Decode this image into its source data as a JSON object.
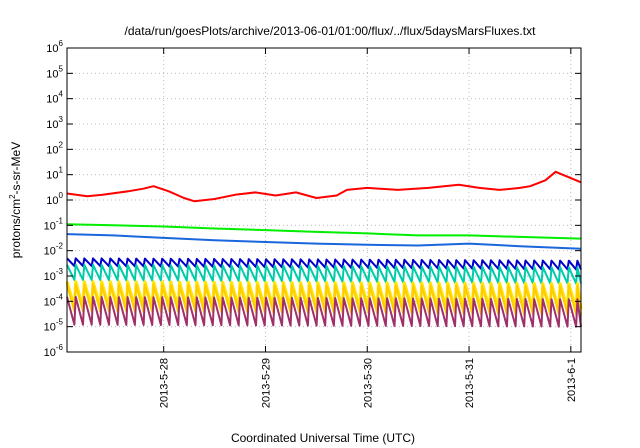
{
  "chart_data": {
    "type": "line",
    "title": "/data/run/goesPlots/archive/2013-06-01/01:00/flux/../flux/5daysMarsFluxes.txt",
    "xlabel": "Coordinated Universal Time (UTC)",
    "ylabel_base": "protons/cm",
    "ylabel_sup": "2",
    "ylabel_rest": "-s-sr-MeV",
    "yscale": "log",
    "ylim_exp": [
      -6,
      6
    ],
    "xlim": [
      -0.95,
      4.1
    ],
    "grid": true,
    "x_ticks": [
      {
        "x": 0,
        "label": "2013-5-28"
      },
      {
        "x": 1,
        "label": "2013-5-29"
      },
      {
        "x": 2,
        "label": "2013-5-30"
      },
      {
        "x": 3,
        "label": "2013-5-31"
      },
      {
        "x": 4,
        "label": "2013-6-1"
      }
    ],
    "y_ticks_exp": [
      -6,
      -5,
      -4,
      -3,
      -2,
      -1,
      0,
      1,
      2,
      3,
      4,
      5,
      6
    ],
    "series": [
      {
        "color": "#ff0000",
        "width": 2,
        "sawtooth": false,
        "x": [
          -0.95,
          -0.75,
          -0.6,
          -0.35,
          -0.2,
          -0.1,
          0.05,
          0.2,
          0.3,
          0.5,
          0.7,
          0.9,
          1.1,
          1.3,
          1.5,
          1.7,
          1.8,
          2.0,
          2.3,
          2.6,
          2.9,
          3.1,
          3.3,
          3.5,
          3.6,
          3.75,
          3.85,
          4.1
        ],
        "y": [
          1.8,
          1.4,
          1.6,
          2.2,
          2.8,
          3.5,
          2.2,
          1.2,
          0.9,
          1.1,
          1.6,
          2.0,
          1.5,
          2.0,
          1.2,
          1.5,
          2.5,
          3.0,
          2.5,
          3.0,
          4.0,
          3.0,
          2.5,
          3.0,
          3.5,
          6.0,
          13,
          5.0
        ]
      },
      {
        "color": "#00ee00",
        "width": 2,
        "sawtooth": false,
        "x": [
          -0.95,
          -0.5,
          0.0,
          0.5,
          1.0,
          1.5,
          2.0,
          2.5,
          3.0,
          3.5,
          4.1
        ],
        "y": [
          0.11,
          0.1,
          0.09,
          0.075,
          0.065,
          0.055,
          0.048,
          0.04,
          0.04,
          0.035,
          0.03
        ]
      },
      {
        "color": "#1a66dd",
        "width": 2,
        "sawtooth": false,
        "x": [
          -0.95,
          -0.5,
          0.0,
          0.5,
          1.0,
          1.5,
          2.0,
          2.5,
          3.0,
          3.5,
          4.1
        ],
        "y": [
          0.045,
          0.04,
          0.032,
          0.026,
          0.022,
          0.019,
          0.017,
          0.016,
          0.019,
          0.015,
          0.012
        ]
      },
      {
        "color": "#0000cc",
        "width": 2,
        "sawtooth": true,
        "period": 0.085,
        "x0": -0.95,
        "x1": 4.1,
        "x": [
          -0.95,
          4.1
        ],
        "hi": [
          0.005,
          0.004
        ],
        "lo": [
          0.0025,
          0.0018
        ]
      },
      {
        "color": "#00ccaa",
        "width": 2,
        "sawtooth": true,
        "period": 0.085,
        "x0": -0.95,
        "x1": 4.1,
        "x": [
          -0.95,
          4.1
        ],
        "hi": [
          0.0028,
          0.0022
        ],
        "lo": [
          0.0007,
          0.0005
        ]
      },
      {
        "color": "#ffe600",
        "width": 3,
        "sawtooth": true,
        "period": 0.085,
        "x0": -0.95,
        "x1": 4.1,
        "x": [
          -0.95,
          4.1
        ],
        "hi": [
          0.0006,
          0.0005
        ],
        "lo": [
          6e-05,
          5e-05
        ]
      },
      {
        "color": "#ffcc00",
        "width": 2,
        "sawtooth": true,
        "period": 0.085,
        "x0": -0.95,
        "x1": 4.1,
        "x": [
          -0.95,
          4.1
        ],
        "hi": [
          0.00045,
          0.0004
        ],
        "lo": [
          4e-05,
          3e-05
        ]
      },
      {
        "color": "#a0306a",
        "width": 2,
        "sawtooth": true,
        "period": 0.085,
        "x0": -0.95,
        "x1": 4.1,
        "x": [
          -0.95,
          4.1
        ],
        "hi": [
          0.00015,
          0.00012
        ],
        "lo": [
          1.2e-05,
          1e-05
        ]
      }
    ]
  }
}
